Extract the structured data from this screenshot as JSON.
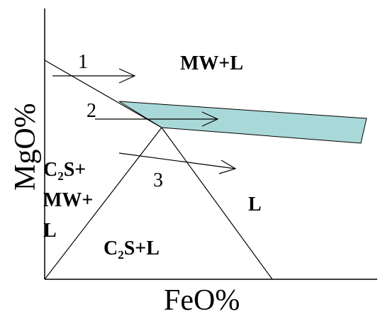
{
  "diagram": {
    "axes": {
      "x_label": "FeO%",
      "y_label": "MgO%"
    },
    "regions": {
      "mw_l": "MW+L",
      "c2s_mw_l": {
        "line1": "C",
        "sub1": "2",
        "line1_rest": "S+",
        "line2": "MW+",
        "line3": "L"
      },
      "c2s_l": {
        "main": "C",
        "sub": "2",
        "rest": "S+L"
      },
      "l": "L"
    },
    "paths": [
      {
        "label": "1"
      },
      {
        "label": "2"
      },
      {
        "label": "3"
      }
    ],
    "colors": {
      "shaded_band": "#a9d8d8",
      "line": "#000000"
    }
  }
}
